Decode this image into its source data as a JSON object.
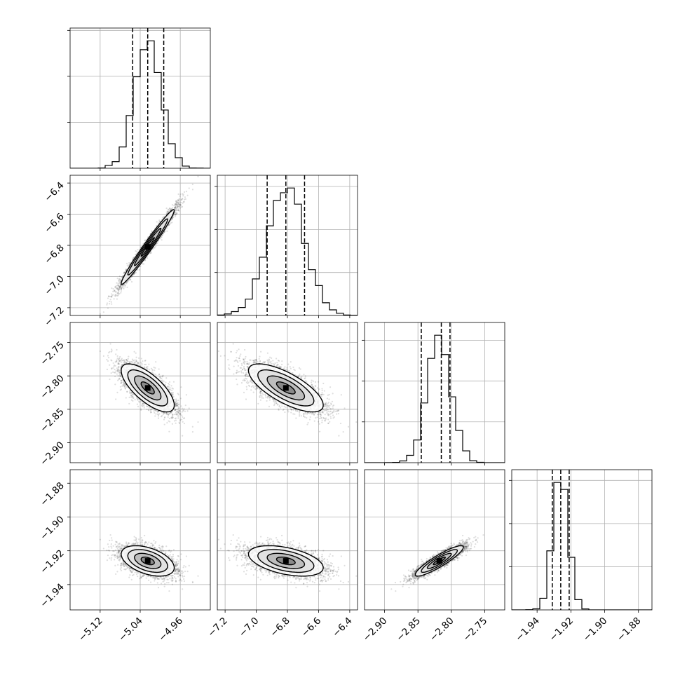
{
  "chart_data": {
    "type": "scatter",
    "subtype": "corner-plot",
    "title": "",
    "params": [
      {
        "range": [
          -5.18,
          -4.9
        ],
        "mean": -5.025,
        "sd": 0.0265,
        "ticks": [
          -5.12,
          -5.04,
          -4.96
        ],
        "tick_labels": [
          "−5.12",
          "−5.04",
          "−4.96"
        ],
        "quantiles": [
          -5.055,
          -5.025,
          -4.993
        ]
      },
      {
        "range": [
          -7.25,
          -6.35
        ],
        "mean": -6.81,
        "sd": 0.12,
        "ticks": [
          -7.2,
          -7.0,
          -6.8,
          -6.6,
          -6.4
        ],
        "tick_labels": [
          "−7.2",
          "−7.0",
          "−6.8",
          "−6.6",
          "−6.4"
        ],
        "quantiles": [
          -6.93,
          -6.81,
          -6.69
        ]
      },
      {
        "range": [
          -2.93,
          -2.72
        ],
        "mean": -2.818,
        "sd": 0.018,
        "ticks": [
          -2.9,
          -2.85,
          -2.8,
          -2.75
        ],
        "tick_labels": [
          "−2.90",
          "−2.85",
          "−2.80",
          "−2.75"
        ],
        "quantiles": [
          -2.845,
          -2.815,
          -2.802
        ]
      },
      {
        "range": [
          -1.955,
          -1.872
        ],
        "mean": -1.926,
        "sd": 0.0045,
        "ticks": [
          -1.94,
          -1.92,
          -1.9,
          -1.88
        ],
        "tick_labels": [
          "−1.94",
          "−1.92",
          "−1.90",
          "−1.88"
        ],
        "quantiles": [
          -1.931,
          -1.926,
          -1.921
        ]
      }
    ],
    "correlations": [
      [
        1.0,
        0.98,
        -0.72,
        -0.45
      ],
      [
        0.98,
        1.0,
        -0.72,
        -0.45
      ],
      [
        -0.72,
        -0.72,
        1.0,
        0.9
      ],
      [
        -0.45,
        -0.45,
        0.9,
        1.0
      ]
    ],
    "histogram_bins": 20,
    "n_samples": 4000,
    "grid": true,
    "contour_levels": 3,
    "colors": {
      "ink": "#000000",
      "grid": "#b0b0b0",
      "contour_fill": "#cfcfcf"
    }
  }
}
